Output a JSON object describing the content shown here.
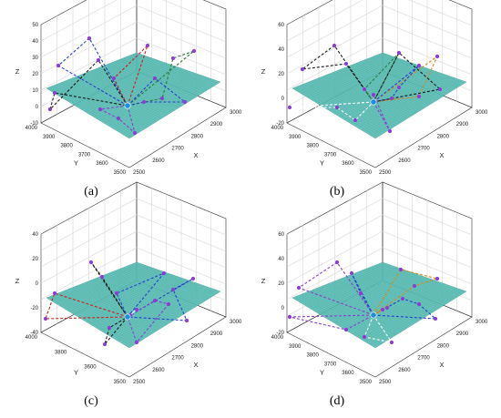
{
  "panels": [
    {
      "caption": "(a)",
      "x_ticks": [
        "2500",
        "2600",
        "2700",
        "2800",
        "2900",
        "3000"
      ],
      "y_ticks": [
        "4000",
        "3900",
        "3800",
        "3700",
        "3600",
        "3500"
      ],
      "z_ticks": [
        "50",
        "40",
        "30",
        "20",
        "10",
        "0",
        "-10"
      ],
      "xlabel": "X",
      "ylabel": "Y",
      "zlabel": "Z"
    },
    {
      "caption": "(b)",
      "x_ticks": [
        "2500",
        "2600",
        "2700",
        "2800",
        "2900",
        "3000"
      ],
      "y_ticks": [
        "4000",
        "3900",
        "3800",
        "3700",
        "3600",
        "3500"
      ],
      "z_ticks": [
        "60",
        "40",
        "20",
        "0",
        "-20"
      ],
      "xlabel": "X",
      "ylabel": "Y",
      "zlabel": "Z"
    },
    {
      "caption": "(c)",
      "x_ticks": [
        "2500",
        "2600",
        "2700",
        "2800",
        "2900",
        "3000"
      ],
      "y_ticks": [
        "4000",
        "3800",
        "3600",
        "3500"
      ],
      "z_ticks": [
        "40",
        "20",
        "0",
        "-20",
        "-40"
      ],
      "xlabel": "X",
      "ylabel": "Y",
      "zlabel": "Z"
    },
    {
      "caption": "(d)",
      "x_ticks": [
        "2500",
        "2600",
        "2700",
        "2800",
        "2900",
        "3000"
      ],
      "y_ticks": [
        "4000",
        "3900",
        "3800",
        "3700",
        "3600",
        "3500"
      ],
      "z_ticks": [
        "60",
        "40",
        "20",
        "0",
        "-20"
      ],
      "xlabel": "X",
      "ylabel": "Y",
      "zlabel": "Z"
    }
  ],
  "colors": {
    "surface": "#5bbfb5",
    "surface_mesh": "#3e9c95",
    "node": "#8a3fd1",
    "base_station": "#1f8fd6",
    "paths": [
      "#1a1a1a",
      "#2a3fd0",
      "#d02020",
      "#2f7d3a",
      "#8a3fd1",
      "#ffffff",
      "#d98a1a"
    ]
  }
}
